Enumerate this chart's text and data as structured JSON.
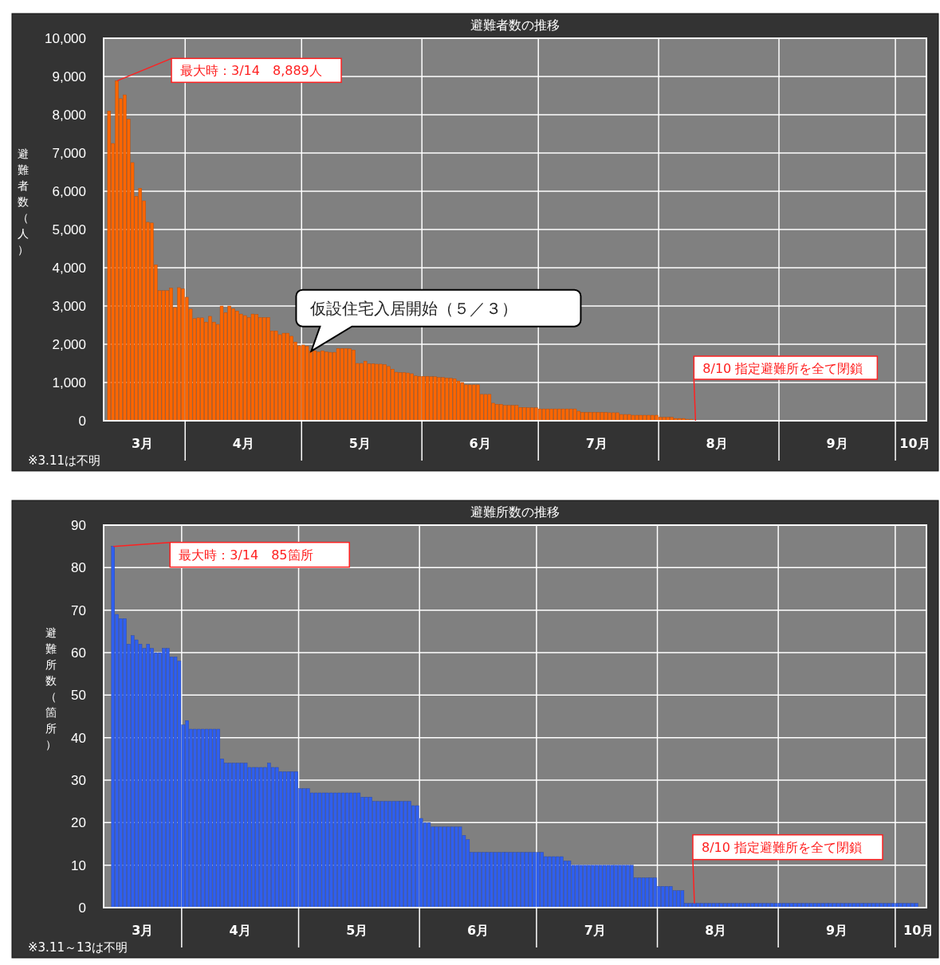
{
  "chart_data": [
    {
      "type": "bar",
      "title": "避難者数の推移",
      "ylabel": "避難者数（人）",
      "color": "#ff6600",
      "x": [
        "--03-12",
        "--03-13",
        "--03-14",
        "--03-15",
        "--03-16",
        "--03-17",
        "--03-18",
        "--03-19",
        "--03-20",
        "--03-21",
        "--03-22",
        "--03-23",
        "--03-24",
        "--03-25",
        "--03-26",
        "--03-27",
        "--03-28",
        "--03-29",
        "--03-30",
        "--03-31",
        "--04-01",
        "--04-02",
        "--04-03",
        "--04-04",
        "--04-05",
        "--04-06",
        "--04-07",
        "--04-08",
        "--04-09",
        "--04-10",
        "--04-11",
        "--04-12",
        "--04-13",
        "--04-14",
        "--04-15",
        "--04-16",
        "--04-17",
        "--04-18",
        "--04-19",
        "--04-20",
        "--04-21",
        "--04-22",
        "--04-23",
        "--04-24",
        "--04-25",
        "--04-26",
        "--04-27",
        "--04-28",
        "--04-29",
        "--04-30",
        "--05-01",
        "--05-02",
        "--05-03",
        "--05-04",
        "--05-05",
        "--05-06",
        "--05-07",
        "--05-08",
        "--05-09",
        "--05-10",
        "--05-11",
        "--05-12",
        "--05-13",
        "--05-14",
        "--05-15",
        "--05-16",
        "--05-17",
        "--05-18",
        "--05-19",
        "--05-20",
        "--05-21",
        "--05-22",
        "--05-23",
        "--05-24",
        "--05-25",
        "--05-26",
        "--05-27",
        "--05-28",
        "--05-29",
        "--05-30",
        "--05-31",
        "--06-01",
        "--06-02",
        "--06-03",
        "--06-04",
        "--06-05",
        "--06-06",
        "--06-07",
        "--06-08",
        "--06-09",
        "--06-10",
        "--06-11",
        "--06-12",
        "--06-13",
        "--06-14",
        "--06-15",
        "--06-16",
        "--06-17",
        "--06-18",
        "--06-19",
        "--06-20",
        "--06-21",
        "--06-22",
        "--06-23",
        "--06-24",
        "--06-25",
        "--06-26",
        "--06-27",
        "--06-28",
        "--06-29",
        "--06-30",
        "--07-01",
        "--07-02",
        "--07-03",
        "--07-04",
        "--07-05",
        "--07-06",
        "--07-07",
        "--07-08",
        "--07-09",
        "--07-10",
        "--07-11",
        "--07-12",
        "--07-13",
        "--07-14",
        "--07-15",
        "--07-16",
        "--07-17",
        "--07-18",
        "--07-19",
        "--07-20",
        "--07-21",
        "--07-22",
        "--07-23",
        "--07-24",
        "--07-25",
        "--07-26",
        "--07-27",
        "--07-28",
        "--07-29",
        "--07-30",
        "--07-31",
        "--08-01",
        "--08-02",
        "--08-03",
        "--08-04",
        "--08-05",
        "--08-06",
        "--08-07",
        "--08-08",
        "--08-09"
      ],
      "values": [
        8100,
        7250,
        8889,
        8420,
        8520,
        7880,
        6750,
        5870,
        6080,
        5750,
        5190,
        5170,
        4080,
        3400,
        3400,
        3400,
        3470,
        2960,
        3480,
        3450,
        3230,
        2920,
        2670,
        2690,
        2690,
        2580,
        2730,
        2580,
        2520,
        3000,
        2830,
        3000,
        2930,
        2870,
        2790,
        2750,
        2700,
        2790,
        2780,
        2700,
        2700,
        2700,
        2350,
        2350,
        2250,
        2290,
        2290,
        2210,
        2060,
        1960,
        1980,
        1950,
        1820,
        1830,
        1800,
        1830,
        1800,
        1790,
        1790,
        1890,
        1890,
        1890,
        1880,
        1850,
        1500,
        1500,
        1560,
        1490,
        1490,
        1480,
        1480,
        1470,
        1420,
        1350,
        1270,
        1260,
        1260,
        1250,
        1230,
        1170,
        1160,
        1160,
        1160,
        1150,
        1150,
        1130,
        1130,
        1120,
        1110,
        1100,
        1040,
        1000,
        940,
        940,
        940,
        940,
        690,
        690,
        690,
        460,
        430,
        430,
        400,
        400,
        400,
        400,
        350,
        350,
        340,
        340,
        340,
        310,
        310,
        310,
        310,
        310,
        310,
        310,
        310,
        310,
        310,
        250,
        220,
        220,
        220,
        220,
        220,
        220,
        220,
        210,
        210,
        210,
        165,
        165,
        165,
        145,
        145,
        145,
        145,
        145,
        145,
        145,
        90,
        90,
        90,
        90,
        60,
        60,
        60,
        40,
        40
      ],
      "xlim": [
        "--03-11",
        "--10-09"
      ],
      "xticks": [
        {
          "value": "--03-21",
          "label": "3月"
        },
        {
          "value": "--04-01",
          "label": null
        },
        {
          "value": "--04-16",
          "label": "4月"
        },
        {
          "value": "--05-01",
          "label": null
        },
        {
          "value": "--05-16",
          "label": "5月"
        },
        {
          "value": "--06-01",
          "label": null
        },
        {
          "value": "--06-16",
          "label": "6月"
        },
        {
          "value": "--07-01",
          "label": null
        },
        {
          "value": "--07-16",
          "label": "7月"
        },
        {
          "value": "--08-01",
          "label": null
        },
        {
          "value": "--08-16",
          "label": "8月"
        },
        {
          "value": "--09-01",
          "label": null
        },
        {
          "value": "--09-16",
          "label": "9月"
        },
        {
          "value": "--10-01",
          "label": null
        },
        {
          "value": "--10-06",
          "label": "10月"
        }
      ],
      "ylim": [
        0,
        10000
      ],
      "yticks": [
        0,
        {
          "value": 1000,
          "label": "1,000"
        },
        {
          "value": 2000,
          "label": "2,000"
        },
        {
          "value": 3000,
          "label": "3,000"
        },
        {
          "value": 4000,
          "label": "4,000"
        },
        {
          "value": 5000,
          "label": "5,000"
        },
        {
          "value": 6000,
          "label": "6,000"
        },
        {
          "value": 7000,
          "label": "7,000"
        },
        {
          "value": 8000,
          "label": "8,000"
        },
        {
          "value": 9000,
          "label": "9,000"
        },
        {
          "value": 10000,
          "label": "10,000"
        }
      ],
      "grid": true,
      "annotations": [
        {
          "text": "最大時：3/14　8,889人",
          "x": "--03-14",
          "y": 8889
        },
        {
          "text": "仮設住宅入居開始（５／３）",
          "x": "--05-03",
          "y": 1820
        },
        {
          "text": "8/10 指定避難所を全て閉鎖",
          "x": "--08-10",
          "y": 0
        },
        "※3.11は不明"
      ]
    },
    {
      "type": "bar",
      "title": "避難所数の推移",
      "ylabel": "避難所数（箇所）",
      "color": "#2f5ff0",
      "x": [
        "--03-14",
        "--03-15",
        "--03-16",
        "--03-17",
        "--03-18",
        "--03-19",
        "--03-20",
        "--03-21",
        "--03-22",
        "--03-23",
        "--03-24",
        "--03-25",
        "--03-26",
        "--03-27",
        "--03-28",
        "--03-29",
        "--03-30",
        "--03-31",
        "--04-01",
        "--04-02",
        "--04-03",
        "--04-04",
        "--04-05",
        "--04-06",
        "--04-07",
        "--04-08",
        "--04-09",
        "--04-10",
        "--04-11",
        "--04-12",
        "--04-13",
        "--04-14",
        "--04-15",
        "--04-16",
        "--04-17",
        "--04-18",
        "--04-19",
        "--04-20",
        "--04-21",
        "--04-22",
        "--04-23",
        "--04-24",
        "--04-25",
        "--04-26",
        "--04-27",
        "--04-28",
        "--04-29",
        "--04-30",
        "--05-01",
        "--05-02",
        "--05-03",
        "--05-04",
        "--05-05",
        "--05-06",
        "--05-07",
        "--05-08",
        "--05-09",
        "--05-10",
        "--05-11",
        "--05-12",
        "--05-13",
        "--05-14",
        "--05-15",
        "--05-16",
        "--05-17",
        "--05-18",
        "--05-19",
        "--05-20",
        "--05-21",
        "--05-22",
        "--05-23",
        "--05-24",
        "--05-25",
        "--05-26",
        "--05-27",
        "--05-28",
        "--05-29",
        "--05-30",
        "--05-31",
        "--06-01",
        "--06-02",
        "--06-03",
        "--06-04",
        "--06-05",
        "--06-06",
        "--06-07",
        "--06-08",
        "--06-09",
        "--06-10",
        "--06-11",
        "--06-12",
        "--06-13",
        "--06-14",
        "--06-15",
        "--06-16",
        "--06-17",
        "--06-18",
        "--06-19",
        "--06-20",
        "--06-21",
        "--06-22",
        "--06-23",
        "--06-24",
        "--06-25",
        "--06-26",
        "--06-27",
        "--06-28",
        "--06-29",
        "--06-30",
        "--07-01",
        "--07-02",
        "--07-03",
        "--07-04",
        "--07-05",
        "--07-06",
        "--07-07",
        "--07-08",
        "--07-09",
        "--07-10",
        "--07-11",
        "--07-12",
        "--07-13",
        "--07-14",
        "--07-15",
        "--07-16",
        "--07-17",
        "--07-18",
        "--07-19",
        "--07-20",
        "--07-21",
        "--07-22",
        "--07-23",
        "--07-24",
        "--07-25",
        "--07-26",
        "--07-27",
        "--07-28",
        "--07-29",
        "--07-30",
        "--07-31",
        "--08-01",
        "--08-02",
        "--08-03",
        "--08-04",
        "--08-05",
        "--08-06",
        "--08-07",
        "--08-08",
        "--08-09",
        "--08-10",
        "--08-11",
        "--08-12",
        "--08-13",
        "--08-14",
        "--08-15",
        "--08-16",
        "--08-17",
        "--08-18",
        "--08-19",
        "--08-20",
        "--08-21",
        "--08-22",
        "--08-23",
        "--08-24",
        "--08-25",
        "--08-26",
        "--08-27",
        "--08-28",
        "--08-29",
        "--08-30",
        "--08-31",
        "--09-01",
        "--09-02",
        "--09-03",
        "--09-04",
        "--09-05",
        "--09-06",
        "--09-07",
        "--09-08",
        "--09-09",
        "--09-10",
        "--09-11",
        "--09-12",
        "--09-13",
        "--09-14",
        "--09-15",
        "--09-16",
        "--09-17",
        "--09-18",
        "--09-19",
        "--09-20",
        "--09-21",
        "--09-22",
        "--09-23",
        "--09-24",
        "--09-25",
        "--09-26",
        "--09-27",
        "--09-28",
        "--09-29",
        "--09-30",
        "--10-01",
        "--10-02",
        "--10-03",
        "--10-04",
        "--10-05",
        "--10-06"
      ],
      "values": [
        85,
        69,
        68,
        68,
        62,
        64,
        63,
        62,
        61,
        62,
        61,
        60,
        60,
        61,
        61,
        59,
        59,
        58,
        43,
        44,
        42,
        42,
        42,
        42,
        42,
        42,
        42,
        42,
        35,
        34,
        34,
        34,
        34,
        34,
        34,
        33,
        33,
        33,
        33,
        33,
        34,
        33,
        33,
        32,
        32,
        32,
        32,
        32,
        28,
        28,
        28,
        27,
        27,
        27,
        27,
        27,
        27,
        27,
        27,
        27,
        27,
        27,
        27,
        27,
        26,
        26,
        26,
        25,
        25,
        25,
        25,
        25,
        25,
        25,
        25,
        25,
        25,
        24,
        24,
        21,
        20,
        20,
        19,
        19,
        19,
        19,
        19,
        19,
        19,
        19,
        17,
        16,
        13,
        13,
        13,
        13,
        13,
        13,
        13,
        13,
        13,
        13,
        13,
        13,
        13,
        13,
        13,
        13,
        13,
        13,
        13,
        12,
        12,
        12,
        12,
        12,
        11,
        11,
        10,
        10,
        10,
        10,
        10,
        10,
        10,
        10,
        10,
        10,
        10,
        10,
        10,
        10,
        10,
        10,
        7,
        7,
        7,
        7,
        7,
        7,
        5,
        5,
        5,
        5,
        4,
        4,
        4,
        1,
        1,
        1,
        1,
        1,
        1,
        1,
        1,
        1,
        1,
        1,
        1,
        1,
        1,
        1,
        1,
        1,
        1,
        1,
        1,
        1,
        1,
        1,
        1,
        1,
        1,
        1,
        1,
        1,
        1,
        1,
        1,
        1,
        1,
        1,
        1,
        1,
        1,
        1,
        1,
        1,
        1,
        1,
        1,
        1,
        1,
        1,
        1,
        1,
        1,
        1,
        1,
        1,
        1,
        1,
        1,
        1,
        1,
        1,
        1
      ],
      "xlim": [
        "--03-12",
        "--10-09"
      ],
      "xticks": [
        {
          "value": "--03-22",
          "label": "3月"
        },
        {
          "value": "--04-01",
          "label": null
        },
        {
          "value": "--04-16",
          "label": "4月"
        },
        {
          "value": "--05-01",
          "label": null
        },
        {
          "value": "--05-16",
          "label": "5月"
        },
        {
          "value": "--06-01",
          "label": null
        },
        {
          "value": "--06-16",
          "label": "6月"
        },
        {
          "value": "--07-01",
          "label": null
        },
        {
          "value": "--07-16",
          "label": "7月"
        },
        {
          "value": "--08-01",
          "label": null
        },
        {
          "value": "--08-16",
          "label": "8月"
        },
        {
          "value": "--09-01",
          "label": null
        },
        {
          "value": "--09-16",
          "label": "9月"
        },
        {
          "value": "--10-01",
          "label": null
        },
        {
          "value": "--10-07",
          "label": "10月"
        }
      ],
      "ylim": [
        0,
        90
      ],
      "yticks": [
        0,
        10,
        20,
        30,
        40,
        50,
        60,
        70,
        80,
        90
      ],
      "grid": true,
      "annotations": [
        {
          "text": "最大時：3/14　85箇所",
          "x": "--03-14",
          "y": 85
        },
        {
          "text": "8/10 指定避難所を全て閉鎖",
          "x": "--08-10",
          "y": 1
        },
        "※3.11～13は不明"
      ]
    }
  ]
}
